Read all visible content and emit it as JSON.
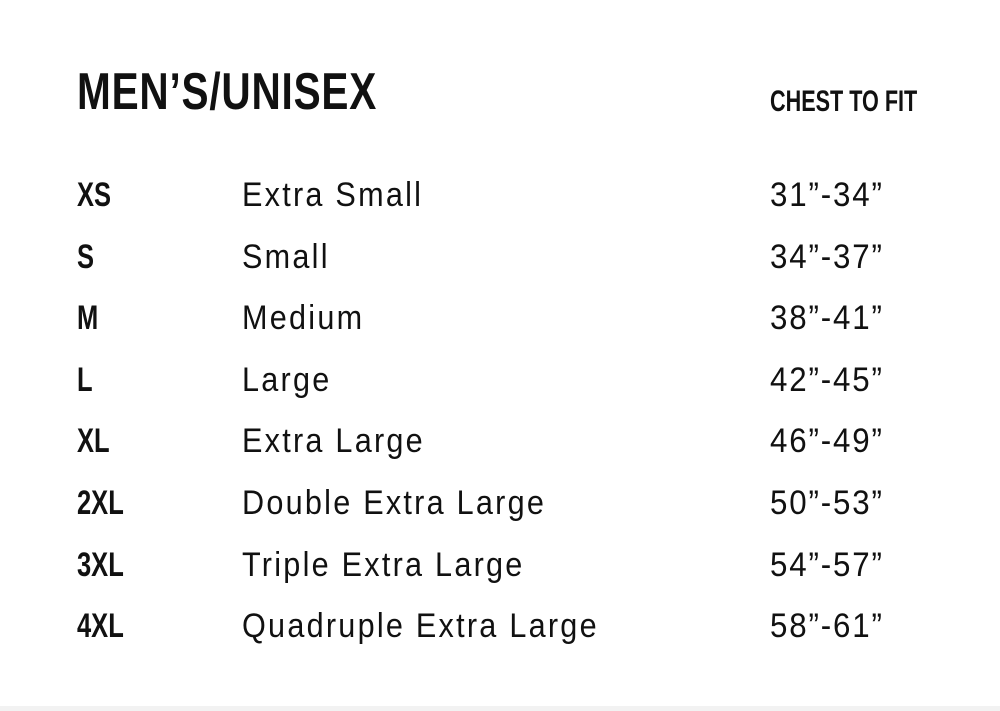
{
  "title": "MEN’S/UNISEX",
  "column_header": "CHEST TO FIT",
  "rows": [
    {
      "size": "XS",
      "name": "Extra Small",
      "range": "31”-34”"
    },
    {
      "size": "S",
      "name": "Small",
      "range": "34”-37”"
    },
    {
      "size": "M",
      "name": "Medium",
      "range": "38”-41”"
    },
    {
      "size": "L",
      "name": "Large",
      "range": "42”-45”"
    },
    {
      "size": "XL",
      "name": "Extra Large",
      "range": "46”-49”"
    },
    {
      "size": "2XL",
      "name": "Double Extra Large",
      "range": "50”-53”"
    },
    {
      "size": "3XL",
      "name": "Triple Extra Large",
      "range": "54”-57”"
    },
    {
      "size": "4XL",
      "name": "Quadruple Extra Large",
      "range": "58”-61”"
    }
  ]
}
